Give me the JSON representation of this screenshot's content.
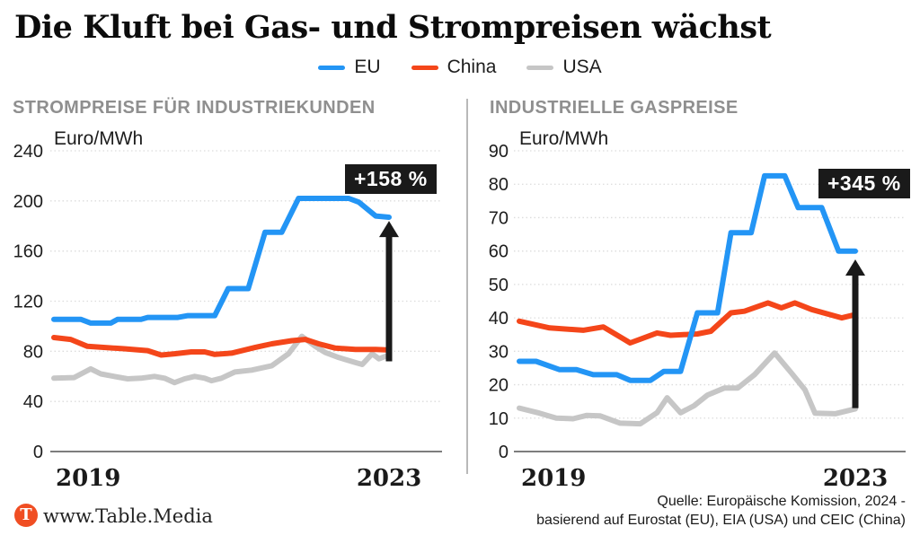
{
  "title": "Die Kluft bei Gas- und Strompreisen wächst",
  "legend": [
    {
      "label": "EU",
      "color": "#2395f5"
    },
    {
      "label": "China",
      "color": "#f4461a"
    },
    {
      "label": "USA",
      "color": "#c6c6c6"
    }
  ],
  "colors": {
    "eu": "#2395f5",
    "china": "#f4461a",
    "usa": "#c6c6c6",
    "badge_bg": "#1a1a1a",
    "panel_title": "#8f8f8f",
    "logo": "#f04e23"
  },
  "footer": {
    "logo_letter": "T",
    "site": "www.Table.Media",
    "source_line1": "Quelle: Europäische Komission, 2024 -",
    "source_line2": "basierend auf Eurostat (EU), EIA (USA) und CEIC (China)"
  },
  "chart_data": [
    {
      "type": "line",
      "title": "STROMPREISE FÜR INDUSTRIEKUNDEN",
      "unit": "Euro/MWh",
      "ylim": [
        0,
        240
      ],
      "ytick_step": 40,
      "x_axis": {
        "left": "2019",
        "right": "2023"
      },
      "badge": "+158 %",
      "arrow": {
        "from_value": 72,
        "to_value": 184
      },
      "grid": "dotted",
      "legend_position": "top-center",
      "series": [
        {
          "name": "USA",
          "color": "#c6c6c6",
          "points": [
            [
              0,
              58.5
            ],
            [
              6,
              59
            ],
            [
              11,
              66
            ],
            [
              14,
              62
            ],
            [
              18,
              60
            ],
            [
              22,
              58
            ],
            [
              26,
              58.5
            ],
            [
              30,
              60
            ],
            [
              33,
              58.5
            ],
            [
              36,
              55
            ],
            [
              39,
              58
            ],
            [
              42,
              60
            ],
            [
              45,
              58.5
            ],
            [
              47,
              56.5
            ],
            [
              50,
              58.5
            ],
            [
              54,
              63.5
            ],
            [
              59,
              65
            ],
            [
              65,
              68.5
            ],
            [
              70,
              78
            ],
            [
              74,
              92
            ],
            [
              78,
              84
            ],
            [
              81,
              79
            ],
            [
              85,
              75
            ],
            [
              90,
              71
            ],
            [
              92,
              69.5
            ],
            [
              95,
              78
            ],
            [
              97,
              74
            ],
            [
              100,
              77
            ]
          ]
        },
        {
          "name": "China",
          "color": "#f4461a",
          "points": [
            [
              0,
              91
            ],
            [
              5,
              89.5
            ],
            [
              10,
              84
            ],
            [
              21,
              82
            ],
            [
              28,
              80.5
            ],
            [
              32,
              77
            ],
            [
              36,
              78
            ],
            [
              41,
              79.5
            ],
            [
              45,
              79.5
            ],
            [
              48,
              77.5
            ],
            [
              53,
              78.5
            ],
            [
              60,
              83
            ],
            [
              65,
              86
            ],
            [
              71,
              88.5
            ],
            [
              75,
              89.5
            ],
            [
              79,
              86
            ],
            [
              84,
              82.5
            ],
            [
              90,
              81.5
            ],
            [
              96,
              81.5
            ],
            [
              100,
              81
            ]
          ]
        },
        {
          "name": "EU",
          "color": "#2395f5",
          "points": [
            [
              0,
              105.5
            ],
            [
              8,
              105.5
            ],
            [
              11,
              102.5
            ],
            [
              17,
              102.5
            ],
            [
              19,
              105.5
            ],
            [
              26,
              105.5
            ],
            [
              28,
              107
            ],
            [
              37,
              107
            ],
            [
              40,
              108.5
            ],
            [
              48,
              108.5
            ],
            [
              52,
              130
            ],
            [
              58,
              130
            ],
            [
              63,
              175
            ],
            [
              68,
              175
            ],
            [
              73,
              202
            ],
            [
              88,
              202
            ],
            [
              91,
              199
            ],
            [
              96,
              188
            ],
            [
              100,
              187
            ]
          ]
        }
      ]
    },
    {
      "type": "line",
      "title": "INDUSTRIELLE GASPREISE",
      "unit": "Euro/MWh",
      "ylim": [
        0,
        90
      ],
      "ytick_step": 10,
      "x_axis": {
        "left": "2019",
        "right": "2023"
      },
      "badge": "+345 %",
      "arrow": {
        "from_value": 13,
        "to_value": 57.5
      },
      "grid": "dotted",
      "legend_position": "top-center",
      "series": [
        {
          "name": "USA",
          "color": "#c6c6c6",
          "points": [
            [
              0,
              13
            ],
            [
              6,
              11.5
            ],
            [
              11,
              10
            ],
            [
              16,
              9.8
            ],
            [
              20,
              10.8
            ],
            [
              24,
              10.7
            ],
            [
              30,
              8.5
            ],
            [
              36,
              8.3
            ],
            [
              41,
              11.6
            ],
            [
              44,
              16.1
            ],
            [
              48,
              11.6
            ],
            [
              52,
              13.7
            ],
            [
              56,
              16.9
            ],
            [
              61,
              19
            ],
            [
              65,
              19
            ],
            [
              70,
              23
            ],
            [
              76,
              29.5
            ],
            [
              81,
              23.5
            ],
            [
              85,
              18.5
            ],
            [
              88,
              11.5
            ],
            [
              94,
              11.3
            ],
            [
              100,
              12.8
            ]
          ]
        },
        {
          "name": "China",
          "color": "#f4461a",
          "points": [
            [
              0,
              39
            ],
            [
              9,
              37
            ],
            [
              19,
              36.3
            ],
            [
              25,
              37.3
            ],
            [
              33,
              32.5
            ],
            [
              41,
              35.5
            ],
            [
              45,
              34.8
            ],
            [
              53,
              35.2
            ],
            [
              57,
              36
            ],
            [
              63,
              41.5
            ],
            [
              67,
              42
            ],
            [
              74,
              44.5
            ],
            [
              78,
              43
            ],
            [
              82,
              44.5
            ],
            [
              87,
              42.5
            ],
            [
              96,
              40
            ],
            [
              100,
              41
            ]
          ]
        },
        {
          "name": "EU",
          "color": "#2395f5",
          "points": [
            [
              0,
              27
            ],
            [
              5,
              27
            ],
            [
              12,
              24.5
            ],
            [
              17,
              24.5
            ],
            [
              22,
              23
            ],
            [
              29,
              23
            ],
            [
              33,
              21.3
            ],
            [
              39,
              21.3
            ],
            [
              43,
              24
            ],
            [
              48,
              24
            ],
            [
              53,
              41.5
            ],
            [
              59,
              41.5
            ],
            [
              63,
              65.5
            ],
            [
              69,
              65.5
            ],
            [
              73,
              82.5
            ],
            [
              79,
              82.5
            ],
            [
              83,
              73
            ],
            [
              90,
              73
            ],
            [
              95,
              60
            ],
            [
              100,
              60
            ]
          ]
        }
      ]
    }
  ]
}
